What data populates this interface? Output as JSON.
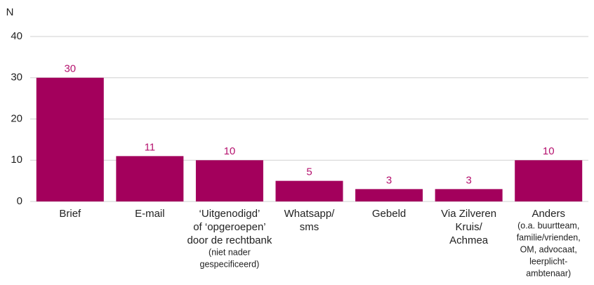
{
  "chart_data": {
    "type": "bar",
    "y_axis_label": "N",
    "categories": [
      {
        "lines": [
          "Brief"
        ],
        "note": []
      },
      {
        "lines": [
          "E-mail"
        ],
        "note": []
      },
      {
        "lines": [
          "‘Uitgenodigd’",
          "of ‘opgeroepen’",
          "door de rechtbank"
        ],
        "note": [
          "(niet nader",
          "gespecificeerd)"
        ]
      },
      {
        "lines": [
          "Whatsapp/",
          "sms"
        ],
        "note": []
      },
      {
        "lines": [
          "Gebeld"
        ],
        "note": []
      },
      {
        "lines": [
          "Via Zilveren",
          "Kruis/",
          "Achmea"
        ],
        "note": []
      },
      {
        "lines": [
          "Anders"
        ],
        "note": [
          "(o.a. buurtteam,",
          "familie/vrienden,",
          "OM, advocaat,",
          "leerplicht-",
          "ambtenaar)"
        ]
      }
    ],
    "values": [
      30,
      11,
      10,
      5,
      3,
      3,
      10
    ],
    "color": "#a3005c",
    "label_color": "#b5126e",
    "ylim": [
      0,
      40
    ],
    "yticks": [
      0,
      10,
      20,
      30,
      40
    ],
    "grid": true
  }
}
